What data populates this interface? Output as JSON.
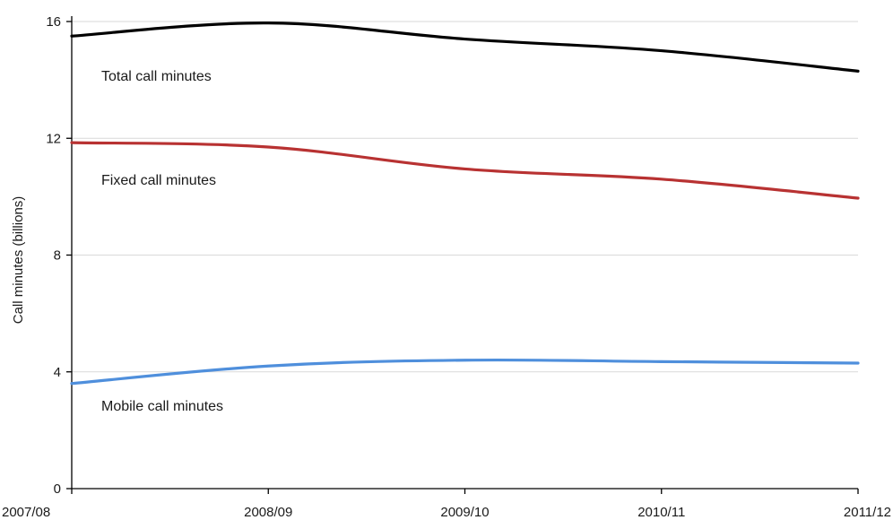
{
  "chart_data": {
    "type": "line",
    "categories": [
      "2007/08",
      "2008/09",
      "2009/10",
      "2010/11",
      "2011/12"
    ],
    "ylabel": "Call minutes (billions)",
    "ylim": [
      0,
      16
    ],
    "yticks": [
      0,
      4,
      8,
      12,
      16
    ],
    "grid": true,
    "legend": "none",
    "series": [
      {
        "name": "Total call minutes",
        "values": [
          15.5,
          15.95,
          15.4,
          15.0,
          14.3
        ],
        "color": "#000000"
      },
      {
        "name": "Fixed call minutes",
        "values": [
          11.85,
          11.7,
          10.95,
          10.6,
          9.95
        ],
        "color": "#b83232"
      },
      {
        "name": "Mobile call minutes",
        "values": [
          3.6,
          4.2,
          4.4,
          4.35,
          4.3
        ],
        "color": "#4f8fdc"
      }
    ]
  }
}
